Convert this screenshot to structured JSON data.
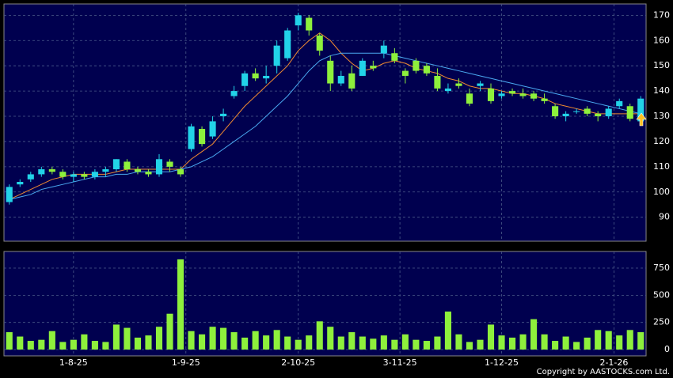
{
  "chart_data": [
    {
      "type": "candlestick",
      "background": "#00004f",
      "grid": true,
      "up_color": "#22d3e8",
      "down_color": "#8ef03c",
      "ylim": [
        80.5,
        174.5
      ],
      "yticks": [
        90,
        100,
        110,
        120,
        130,
        140,
        150,
        160,
        170
      ],
      "ohlc": [
        [
          96,
          103,
          95,
          102
        ],
        [
          103,
          105,
          102,
          104
        ],
        [
          105,
          108,
          104,
          107
        ],
        [
          107,
          110,
          106,
          109
        ],
        [
          109,
          110,
          107,
          108
        ],
        [
          108,
          109,
          105,
          106
        ],
        [
          106,
          108,
          104,
          107
        ],
        [
          107,
          108,
          105,
          106
        ],
        [
          106,
          109,
          105,
          108
        ],
        [
          108,
          110,
          106,
          109
        ],
        [
          109,
          113,
          108,
          113
        ],
        [
          112,
          113,
          108,
          109
        ],
        [
          109,
          110,
          107,
          108
        ],
        [
          108,
          109,
          106,
          107
        ],
        [
          107,
          115,
          106,
          113
        ],
        [
          112,
          113,
          108,
          110
        ],
        [
          109,
          110,
          106,
          107
        ],
        [
          117,
          127,
          116,
          126
        ],
        [
          125,
          126,
          118,
          119
        ],
        [
          122,
          130,
          121,
          128
        ],
        [
          130,
          133,
          128,
          131
        ],
        [
          138,
          142,
          137,
          140
        ],
        [
          142,
          148,
          140,
          147
        ],
        [
          147,
          149,
          144,
          145
        ],
        [
          145,
          150,
          143,
          146
        ],
        [
          150,
          160,
          147,
          158
        ],
        [
          153,
          165,
          152,
          164
        ],
        [
          166,
          171,
          164,
          170
        ],
        [
          169,
          170,
          162,
          164
        ],
        [
          162,
          163,
          154,
          156
        ],
        [
          152,
          154,
          140,
          143
        ],
        [
          143,
          148,
          142,
          146
        ],
        [
          147,
          150,
          140,
          141
        ],
        [
          146,
          153,
          146,
          152
        ],
        [
          150,
          152,
          148,
          149
        ],
        [
          155,
          160,
          153,
          158
        ],
        [
          155,
          157,
          151,
          152
        ],
        [
          148,
          149,
          143,
          146
        ],
        [
          152,
          153,
          147,
          148
        ],
        [
          150,
          151,
          146,
          147
        ],
        [
          146,
          149,
          140,
          141
        ],
        [
          140,
          143,
          139,
          141
        ],
        [
          143,
          145,
          141,
          142
        ],
        [
          139,
          141,
          134,
          135
        ],
        [
          142,
          144,
          140,
          143
        ],
        [
          141,
          143,
          135,
          136
        ],
        [
          138,
          140,
          137,
          139
        ],
        [
          140,
          141,
          138,
          139
        ],
        [
          139,
          141,
          137,
          138
        ],
        [
          139,
          140,
          136,
          137
        ],
        [
          137,
          139,
          135,
          136
        ],
        [
          134,
          135,
          129,
          130
        ],
        [
          130,
          132,
          128,
          131
        ],
        [
          132,
          133,
          131,
          132
        ],
        [
          133,
          134,
          130,
          131
        ],
        [
          131,
          132,
          128,
          130
        ],
        [
          130,
          134,
          129,
          133
        ],
        [
          134,
          137,
          133,
          136
        ],
        [
          134,
          135,
          128,
          129
        ],
        [
          128,
          138,
          127,
          137
        ]
      ],
      "ma": [
        {
          "color": "#f08a30",
          "values": [
            97,
            99,
            101,
            103,
            105,
            106,
            107,
            107,
            107,
            107,
            108,
            109,
            109,
            109,
            109,
            109,
            109,
            113,
            116,
            119,
            124,
            129,
            134,
            138,
            142,
            146,
            150,
            156,
            160,
            163,
            160,
            155,
            151,
            148,
            149,
            151,
            152,
            151,
            149,
            148,
            147,
            145,
            144,
            142,
            141,
            141,
            140,
            139,
            139,
            138,
            137,
            135,
            134,
            133,
            132,
            131,
            131,
            131,
            131,
            131
          ]
        },
        {
          "color": "#4aa8f0",
          "values": [
            97,
            98,
            99,
            101,
            102,
            103,
            104,
            105,
            106,
            106,
            107,
            107,
            108,
            108,
            108,
            108,
            109,
            110,
            112,
            114,
            117,
            120,
            123,
            126,
            130,
            134,
            138,
            143,
            148,
            152,
            154,
            155,
            155,
            155,
            155,
            155,
            154,
            153,
            152,
            151,
            150,
            149,
            148,
            147,
            146,
            145,
            144,
            143,
            142,
            141,
            140,
            139,
            138,
            137,
            136,
            135,
            134,
            133,
            132,
            131
          ]
        }
      ]
    },
    {
      "type": "bar",
      "background": "#00004f",
      "grid": true,
      "color": "#8ef03c",
      "ylim": [
        -58,
        903
      ],
      "yticks": [
        0,
        250,
        500,
        750
      ],
      "values": [
        160,
        120,
        80,
        90,
        170,
        70,
        90,
        140,
        80,
        70,
        230,
        200,
        110,
        130,
        210,
        330,
        830,
        170,
        140,
        210,
        200,
        160,
        110,
        170,
        130,
        180,
        120,
        90,
        130,
        260,
        210,
        120,
        160,
        120,
        100,
        130,
        90,
        140,
        90,
        80,
        120,
        350,
        140,
        70,
        90,
        230,
        130,
        110,
        140,
        280,
        140,
        80,
        120,
        70,
        110,
        180,
        170,
        130,
        180,
        160
      ],
      "xticks": [
        {
          "value": 6,
          "label": "1-8-25"
        },
        {
          "value": 16.5,
          "label": "1-9-25"
        },
        {
          "value": 27,
          "label": "2-10-25"
        },
        {
          "value": 36.5,
          "label": "3-11-25"
        },
        {
          "value": 46,
          "label": "1-12-25"
        },
        {
          "value": 56.5,
          "label": "2-1-26"
        }
      ]
    }
  ],
  "footer": "Copyright by AASTOCKS.com Ltd."
}
